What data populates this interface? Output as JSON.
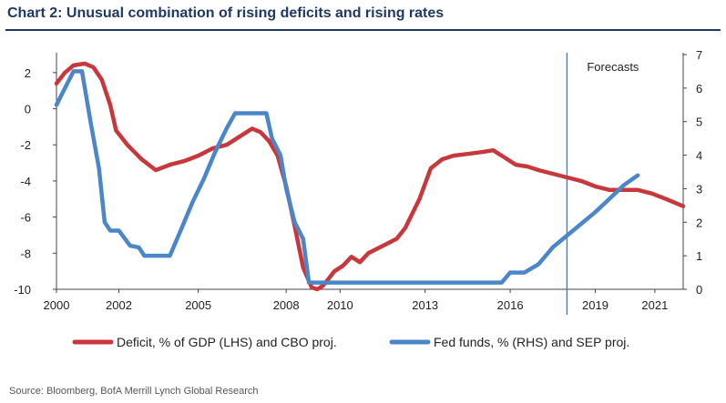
{
  "title": "Chart 2: Unusual combination of rising deficits and rising rates",
  "source": "Source:  Bloomberg, BofA Merrill Lynch Global Research",
  "chart_data": {
    "type": "line",
    "annotation": "Forecasts",
    "forecast_start_x": 2018.0,
    "x_tick_labels": [
      "2000",
      "2002",
      "2005",
      "2008",
      "2010",
      "2013",
      "2016",
      "2019",
      "2021"
    ],
    "left_axis": {
      "ylim": [
        -10,
        3
      ],
      "ticks": [
        2,
        0,
        -2,
        -4,
        -6,
        -8,
        -10
      ]
    },
    "right_axis": {
      "ylim": [
        0,
        7
      ],
      "ticks": [
        7,
        6,
        5,
        4,
        3,
        2,
        1,
        0
      ]
    },
    "series": [
      {
        "name": "Deficit, % of GDP (LHS) and CBO proj.",
        "axis": "left",
        "color": "#c8373b",
        "x": [
          2000.0,
          2000.3,
          2000.6,
          2001.0,
          2001.3,
          2001.6,
          2001.9,
          2002.1,
          2002.5,
          2003.0,
          2003.5,
          2004.0,
          2004.5,
          2005.0,
          2005.5,
          2006.0,
          2006.5,
          2006.9,
          2007.2,
          2007.5,
          2007.8,
          2008.1,
          2008.4,
          2008.7,
          2009.0,
          2009.2,
          2009.4,
          2009.6,
          2009.8,
          2010.1,
          2010.4,
          2010.7,
          2011.0,
          2011.5,
          2012.0,
          2012.3,
          2012.8,
          2013.2,
          2013.6,
          2014.0,
          2014.5,
          2015.0,
          2015.4,
          2015.8,
          2016.2,
          2016.6,
          2017.0,
          2017.5,
          2018.0,
          2018.5,
          2019.0,
          2019.5,
          2020.0,
          2020.5,
          2021.0,
          2021.5,
          2022.1
        ],
        "values": [
          1.4,
          2.0,
          2.4,
          2.5,
          2.3,
          1.6,
          0.2,
          -1.2,
          -2.0,
          -2.8,
          -3.4,
          -3.1,
          -2.9,
          -2.6,
          -2.2,
          -2.0,
          -1.5,
          -1.1,
          -1.3,
          -1.8,
          -2.6,
          -4.3,
          -6.5,
          -8.8,
          -9.9,
          -10.0,
          -9.8,
          -9.4,
          -9.0,
          -8.7,
          -8.2,
          -8.5,
          -8.0,
          -7.6,
          -7.2,
          -6.6,
          -5.0,
          -3.3,
          -2.8,
          -2.6,
          -2.5,
          -2.4,
          -2.3,
          -2.7,
          -3.1,
          -3.2,
          -3.4,
          -3.6,
          -3.8,
          -4.0,
          -4.3,
          -4.5,
          -4.5,
          -4.5,
          -4.7,
          -5.0,
          -5.4
        ]
      },
      {
        "name": "Fed funds, % (RHS) and SEP proj.",
        "axis": "right",
        "color": "#4a86c8",
        "x": [
          2000.0,
          2000.3,
          2000.6,
          2000.9,
          2001.2,
          2001.5,
          2001.7,
          2001.9,
          2002.2,
          2002.6,
          2002.9,
          2003.1,
          2003.5,
          2004.0,
          2004.4,
          2004.8,
          2005.2,
          2005.6,
          2006.0,
          2006.3,
          2006.7,
          2007.0,
          2007.4,
          2007.6,
          2007.9,
          2008.1,
          2008.4,
          2008.7,
          2008.9,
          2009.5,
          2010.0,
          2011.0,
          2012.0,
          2013.0,
          2014.0,
          2015.0,
          2015.7,
          2016.0,
          2016.5,
          2017.0,
          2017.5,
          2018.0,
          2018.5,
          2019.0,
          2019.5,
          2020.0,
          2020.5
        ],
        "values": [
          5.5,
          6.0,
          6.5,
          6.5,
          5.0,
          3.6,
          2.0,
          1.75,
          1.75,
          1.3,
          1.25,
          1.0,
          1.0,
          1.0,
          1.8,
          2.6,
          3.3,
          4.1,
          4.8,
          5.25,
          5.25,
          5.25,
          5.25,
          4.5,
          4.0,
          3.0,
          2.0,
          1.5,
          0.2,
          0.2,
          0.2,
          0.2,
          0.2,
          0.2,
          0.2,
          0.2,
          0.2,
          0.5,
          0.5,
          0.75,
          1.25,
          1.6,
          1.95,
          2.3,
          2.7,
          3.1,
          3.4
        ]
      }
    ]
  }
}
